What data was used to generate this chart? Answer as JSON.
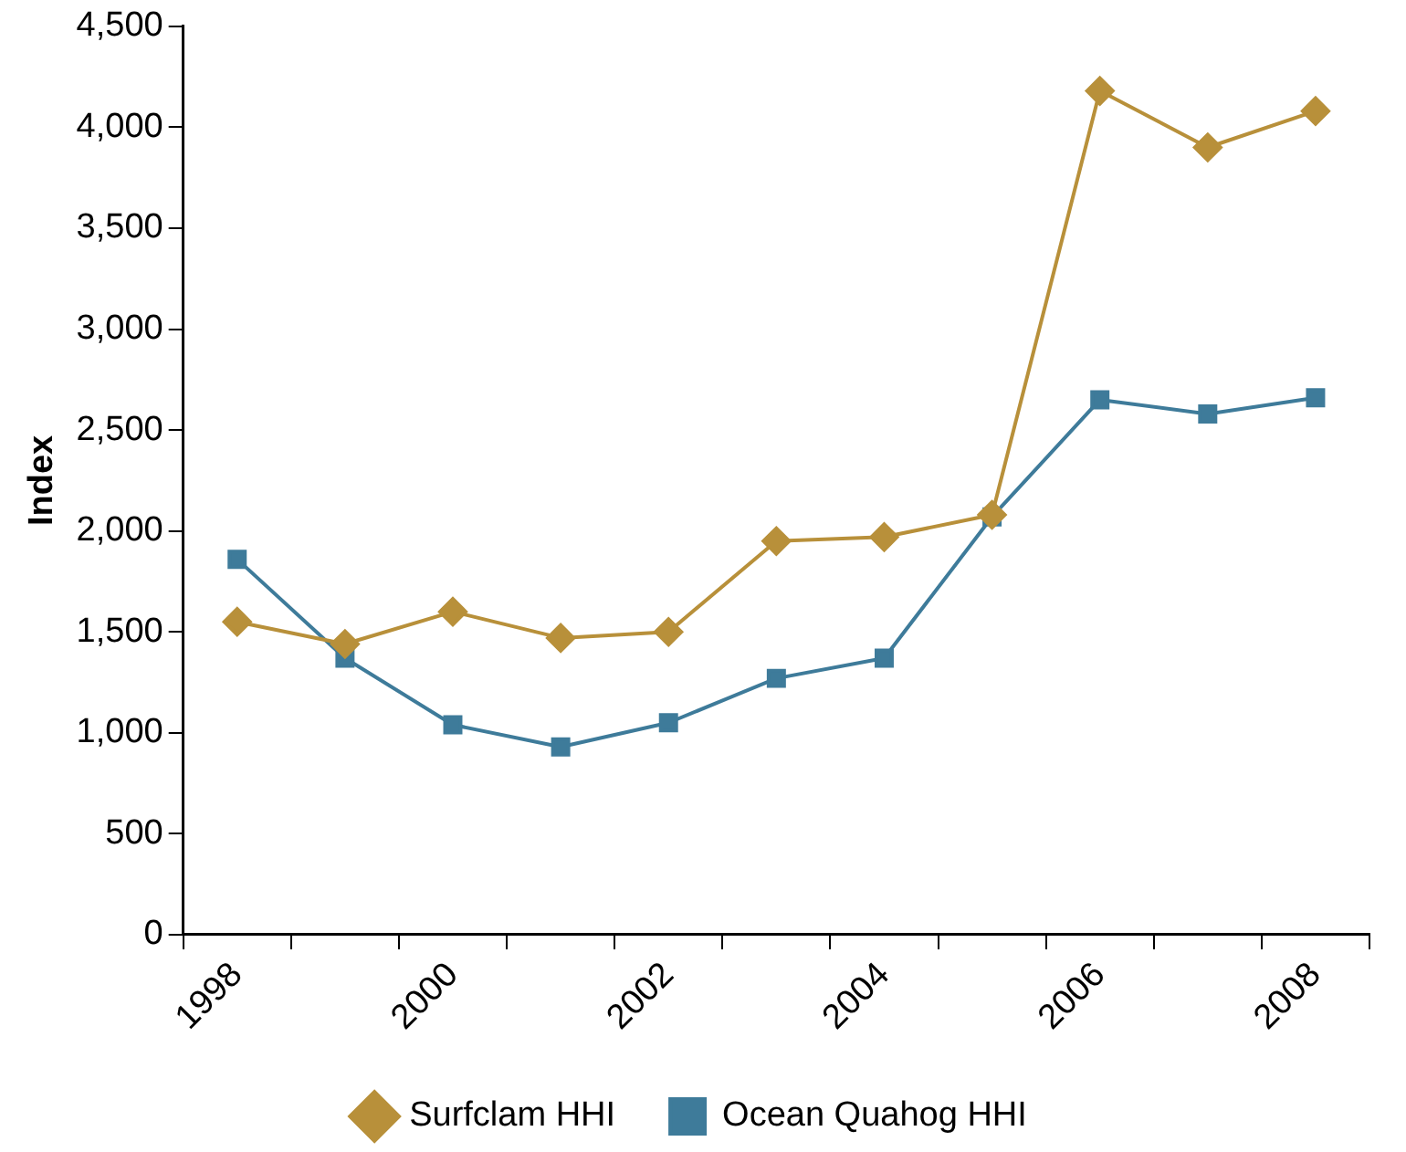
{
  "chart_data": {
    "type": "line",
    "ylabel": "Index",
    "categories": [
      "1998",
      null,
      "2000",
      null,
      "2002",
      null,
      "2004",
      null,
      "2006",
      null,
      "2008"
    ],
    "series": [
      {
        "name": "Surfclam HHI",
        "color": "#b8903a",
        "marker": "diamond",
        "values": [
          1550,
          1440,
          1600,
          1470,
          1500,
          1950,
          1970,
          2080,
          4180,
          3900,
          4080
        ]
      },
      {
        "name": "Ocean Quahog HHI",
        "color": "#3e7b9a",
        "marker": "square",
        "values": [
          1860,
          1370,
          1040,
          930,
          1050,
          1270,
          1370,
          2070,
          2650,
          2580,
          2660
        ]
      }
    ],
    "ylim": [
      0,
      4500
    ],
    "yticks": [
      0,
      500,
      {
        "value": 1000,
        "label": "1,000"
      },
      {
        "value": 1500,
        "label": "1,500"
      },
      {
        "value": 2000,
        "label": "2,000"
      },
      {
        "value": 2500,
        "label": "2,500"
      },
      {
        "value": 3000,
        "label": "3,000"
      },
      {
        "value": 3500,
        "label": "3,500"
      },
      {
        "value": 4000,
        "label": "4,000"
      },
      {
        "value": 4500,
        "label": "4,500"
      }
    ],
    "grid": false,
    "legend": "bottom",
    "line_style": "solid"
  }
}
